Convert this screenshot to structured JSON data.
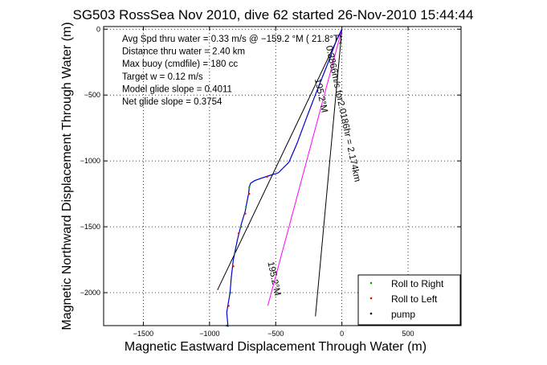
{
  "chart_data": {
    "type": "line",
    "title": "SG503 RossSea Nov 2010, dive 62 started 26-Nov-2010 15:44:44",
    "xlabel": "Magnetic Eastward Displacement Through Water (m)",
    "ylabel": "Magnetic Northward Displacement Through Water (m)",
    "xlim": [
      -1800,
      900
    ],
    "ylim": [
      -2250,
      20
    ],
    "x_ticks": [
      -1500,
      -1000,
      -500,
      0,
      500
    ],
    "y_ticks": [
      -2000,
      -1500,
      -1000,
      -500,
      0
    ],
    "x_tick_labels": [
      "−1500",
      "−1000",
      "−500",
      "0",
      "500"
    ],
    "y_tick_labels": [
      "−2000",
      "−1500",
      "−1000",
      "−500",
      "0"
    ],
    "grid": true,
    "legend_position": "bottom-right",
    "annotations": [
      "Avg Spd thru water =  0.33 m/s @ −159.2  °M ( 21.8°T)",
      "Distance thru water =  2.40 km",
      "Max buoy (cmdfile) = 180 cc",
      "Target w = 0.12 m/s",
      "Model glide slope = 0.4011",
      "Net glide slope = 0.3754"
    ],
    "rotated_labels": [
      {
        "text": "195.2°M",
        "x": -205,
        "y": -380,
        "angle": 78
      },
      {
        "text": "0.3866m/s for2.0186hr = 2.174km",
        "x": -120,
        "y": -130,
        "angle": 78
      },
      {
        "text": "195.2°M",
        "x": -560,
        "y": -1770,
        "angle": 78
      }
    ],
    "series": [
      {
        "name": "Roll to Right",
        "color": "#00aa00",
        "marker": "dot",
        "points": [
          [
            -870,
            -2250
          ],
          [
            -840,
            -2000
          ],
          [
            -810,
            -1700
          ],
          [
            -760,
            -1500
          ],
          [
            -725,
            -1350
          ],
          [
            -700,
            -1200
          ]
        ]
      },
      {
        "name": "Roll to Left",
        "color": "#ff0000",
        "marker": "dot",
        "points": [
          [
            -855,
            -2100
          ],
          [
            -820,
            -1800
          ],
          [
            -780,
            -1550
          ],
          [
            -730,
            -1400
          ],
          [
            -700,
            -1250
          ],
          [
            -565,
            -1120
          ]
        ]
      },
      {
        "name": "pump",
        "color": "#000000",
        "marker": "dot",
        "points": []
      }
    ],
    "track": {
      "color": "#0000cc",
      "points": [
        [
          -860,
          -2260
        ],
        [
          -870,
          -2150
        ],
        [
          -845,
          -2000
        ],
        [
          -835,
          -1880
        ],
        [
          -820,
          -1750
        ],
        [
          -790,
          -1600
        ],
        [
          -760,
          -1480
        ],
        [
          -730,
          -1380
        ],
        [
          -715,
          -1300
        ],
        [
          -705,
          -1250
        ],
        [
          -700,
          -1200
        ],
        [
          -690,
          -1170
        ],
        [
          -660,
          -1150
        ],
        [
          -620,
          -1135
        ],
        [
          -560,
          -1115
        ],
        [
          -480,
          -1090
        ],
        [
          -400,
          -1010
        ],
        [
          -340,
          -870
        ],
        [
          -270,
          -680
        ],
        [
          -190,
          -470
        ],
        [
          -110,
          -270
        ],
        [
          -40,
          -80
        ],
        [
          0,
          0
        ]
      ]
    },
    "model_lines": [
      {
        "color": "#000000",
        "points": [
          [
            -940,
            -1980
          ],
          [
            0,
            0
          ]
        ]
      },
      {
        "color": "#000000",
        "points": [
          [
            -200,
            -2180
          ],
          [
            0,
            0
          ]
        ]
      },
      {
        "color": "#ff00ff",
        "points": [
          [
            -560,
            -2100
          ],
          [
            0,
            0
          ]
        ]
      }
    ]
  }
}
